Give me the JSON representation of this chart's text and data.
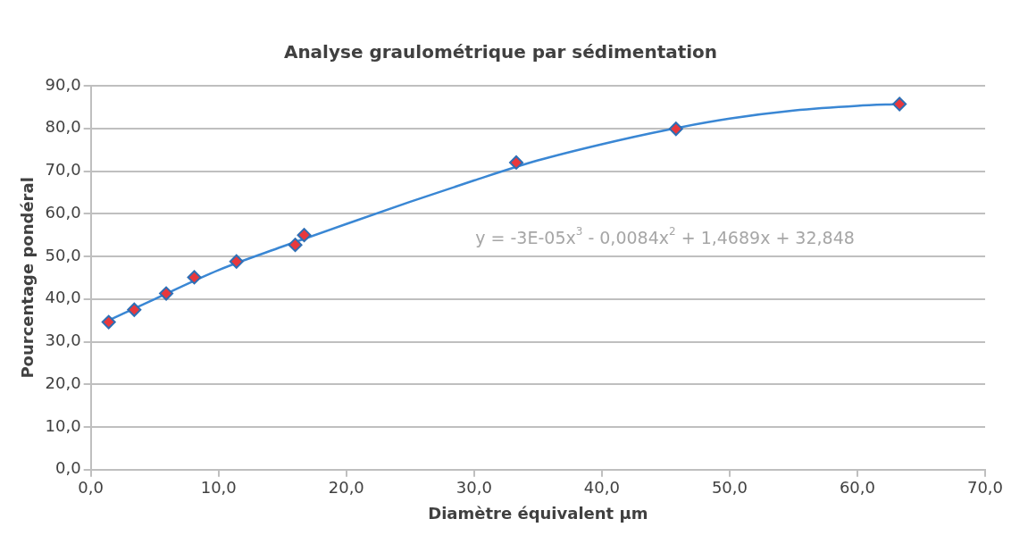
{
  "chart_data": {
    "type": "scatter",
    "title": "Analyse graulométrique par sédimentation",
    "xlabel": "Diamètre équivalent µm",
    "ylabel": "Pourcentage pondéral",
    "xlim": [
      0,
      70
    ],
    "xticks": [
      {
        "value": 0,
        "label": "0,0"
      },
      {
        "value": 10,
        "label": "10,0"
      },
      {
        "value": 20,
        "label": "20,0"
      },
      {
        "value": 30,
        "label": "30,0"
      },
      {
        "value": 40,
        "label": "40,0"
      },
      {
        "value": 50,
        "label": "50,0"
      },
      {
        "value": 60,
        "label": "60,0"
      },
      {
        "value": 70,
        "label": "70,0"
      }
    ],
    "ylim": [
      0,
      90
    ],
    "yticks": [
      {
        "value": 0,
        "label": "0,0"
      },
      {
        "value": 10,
        "label": "10,0"
      },
      {
        "value": 20,
        "label": "20,0"
      },
      {
        "value": 30,
        "label": "30,0"
      },
      {
        "value": 40,
        "label": "40,0"
      },
      {
        "value": 50,
        "label": "50,0"
      },
      {
        "value": 60,
        "label": "60,0"
      },
      {
        "value": 70,
        "label": "70,0"
      },
      {
        "value": 80,
        "label": "80,0"
      },
      {
        "value": 90,
        "label": "90,0"
      }
    ],
    "grid": "y",
    "legend": false,
    "marker": "diamond",
    "series": [
      {
        "type": "line",
        "color": "#3a87d4",
        "marker": "none",
        "x": [
          1.4,
          5,
          10,
          15,
          20,
          25,
          30,
          35,
          40,
          45,
          50,
          55,
          60,
          63.3
        ],
        "values": [
          35.0,
          40.0,
          46.8,
          52.3,
          57.6,
          62.8,
          67.8,
          72.5,
          76.3,
          79.6,
          82.3,
          84.2,
          85.3,
          85.7
        ]
      },
      {
        "color": "#e8383d",
        "x": [
          1.4,
          3.4,
          5.9,
          8.1,
          11.4,
          16.0,
          16.7,
          33.3,
          45.8,
          63.3
        ],
        "values": [
          34.6,
          37.5,
          41.3,
          45.1,
          48.8,
          52.7,
          55.0,
          72.0,
          79.9,
          85.7
        ]
      }
    ],
    "annotations": [
      "y = -3E-05x$^{3}$ - 0,0084x$^{2}$ + 1,4689x + 32,848"
    ]
  }
}
